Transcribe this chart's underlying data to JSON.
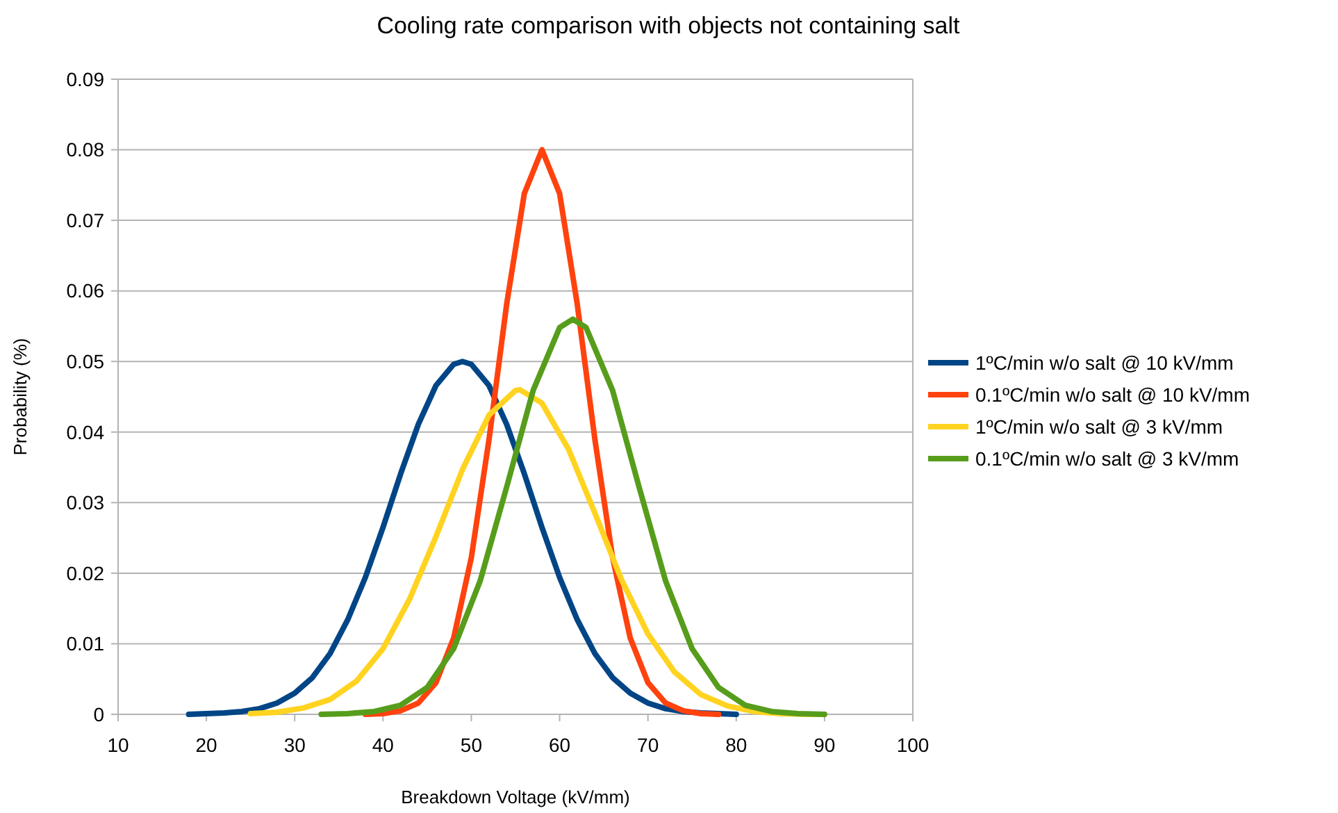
{
  "chart_data": {
    "type": "line",
    "title": "Cooling rate comparison with objects not containing salt",
    "xlabel": "Breakdown Voltage (kV/mm)",
    "ylabel": "Probability (%)",
    "xlim": [
      10,
      100
    ],
    "xticks": [
      10,
      20,
      30,
      40,
      50,
      60,
      70,
      80,
      90,
      100
    ],
    "ylim": [
      0,
      0.09
    ],
    "yticks": [
      0,
      0.01,
      0.02,
      0.03,
      0.04,
      0.05,
      0.06,
      0.07,
      0.08,
      0.09
    ],
    "grid": "y",
    "legend": "right",
    "marker": "none",
    "line_style": "solid",
    "series": [
      {
        "name": "1ºC/min w/o salt @ 10 kV/mm",
        "color": "#004586",
        "x": [
          18,
          20,
          22,
          24,
          26,
          28,
          30,
          32,
          34,
          36,
          38,
          40,
          42,
          44,
          46,
          48,
          49,
          50,
          52,
          54,
          56,
          58,
          60,
          62,
          64,
          66,
          68,
          70,
          72,
          74,
          76,
          78,
          80
        ],
        "values": [
          0,
          0.0001,
          0.0002,
          0.0004,
          0.0008,
          0.0016,
          0.003,
          0.0052,
          0.0086,
          0.0134,
          0.0194,
          0.0265,
          0.0341,
          0.0411,
          0.0466,
          0.0496,
          0.05,
          0.0496,
          0.0466,
          0.0411,
          0.0341,
          0.0265,
          0.0194,
          0.0134,
          0.0086,
          0.0052,
          0.003,
          0.0016,
          0.0008,
          0.0004,
          0.0002,
          0.0001,
          0
        ]
      },
      {
        "name": "0.1ºC/min w/o salt @ 10 kV/mm",
        "color": "#ff420e",
        "x": [
          38,
          40,
          42,
          44,
          46,
          48,
          50,
          52,
          54,
          56,
          58,
          60,
          62,
          64,
          66,
          68,
          70,
          72,
          74,
          76,
          78
        ],
        "values": [
          0,
          0.0001,
          0.0005,
          0.0016,
          0.0045,
          0.0108,
          0.0222,
          0.0389,
          0.0581,
          0.0738,
          0.08,
          0.0738,
          0.0581,
          0.0389,
          0.0222,
          0.0108,
          0.0045,
          0.0016,
          0.0005,
          0.0001,
          0
        ]
      },
      {
        "name": "1ºC/min w/o salt @ 3 kV/mm",
        "color": "#ffd320",
        "x": [
          25,
          28,
          31,
          34,
          37,
          40,
          43,
          46,
          49,
          52,
          55,
          55.5,
          58,
          61,
          64,
          67,
          70,
          73,
          76,
          79,
          82,
          85,
          88,
          90
        ],
        "values": [
          0.0001,
          0.0003,
          0.0009,
          0.0021,
          0.0047,
          0.0093,
          0.0163,
          0.0252,
          0.0347,
          0.0424,
          0.0459,
          0.046,
          0.0441,
          0.0376,
          0.0285,
          0.0191,
          0.0114,
          0.006,
          0.0028,
          0.0012,
          0.0004,
          0.0001,
          0,
          0
        ]
      },
      {
        "name": "0.1ºC/min w/o salt @ 3 kV/mm",
        "color": "#579d1c",
        "x": [
          33,
          36,
          39,
          42,
          45,
          48,
          51,
          54,
          57,
          60,
          61.5,
          63,
          66,
          69,
          72,
          75,
          78,
          81,
          84,
          87,
          90
        ],
        "values": [
          0,
          0.0001,
          0.0004,
          0.0013,
          0.0038,
          0.0093,
          0.0189,
          0.0322,
          0.0459,
          0.0548,
          0.056,
          0.0548,
          0.0459,
          0.0322,
          0.0189,
          0.0093,
          0.0038,
          0.0013,
          0.0004,
          0.0001,
          0
        ]
      }
    ]
  }
}
